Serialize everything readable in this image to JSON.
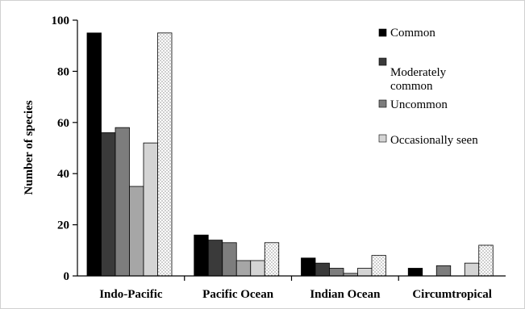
{
  "chart_data": {
    "type": "bar",
    "title": "",
    "xlabel": "",
    "ylabel": "Number of species",
    "ylim": [
      0,
      100
    ],
    "yticks": [
      0,
      20,
      40,
      60,
      80,
      100
    ],
    "grid": false,
    "legend_position": "top-right",
    "categories": [
      "Indo-Pacific",
      "Pacific Ocean",
      "Indian Ocean",
      "Circumtropical"
    ],
    "series": [
      {
        "name": "Common",
        "color": "#000000",
        "pattern": "solid",
        "values": [
          95,
          16,
          7,
          3
        ]
      },
      {
        "name": "Moderately common",
        "color": "#3a3a3a",
        "pattern": "solid",
        "values": [
          56,
          14,
          5,
          0
        ]
      },
      {
        "name": "Uncommon",
        "color": "#7d7d7d",
        "pattern": "solid",
        "values": [
          58,
          13,
          3,
          4
        ]
      },
      {
        "name": "",
        "color": "#a6a6a6",
        "pattern": "solid",
        "values": [
          35,
          6,
          1,
          0
        ]
      },
      {
        "name": "Occasionally seen",
        "color": "#d4d4d4",
        "pattern": "solid",
        "values": [
          52,
          6,
          3,
          5
        ]
      },
      {
        "name": "",
        "color": "#ffffff",
        "pattern": "dots",
        "values": [
          95,
          13,
          8,
          12
        ]
      }
    ],
    "legend_series": [
      0,
      1,
      2,
      4
    ]
  }
}
